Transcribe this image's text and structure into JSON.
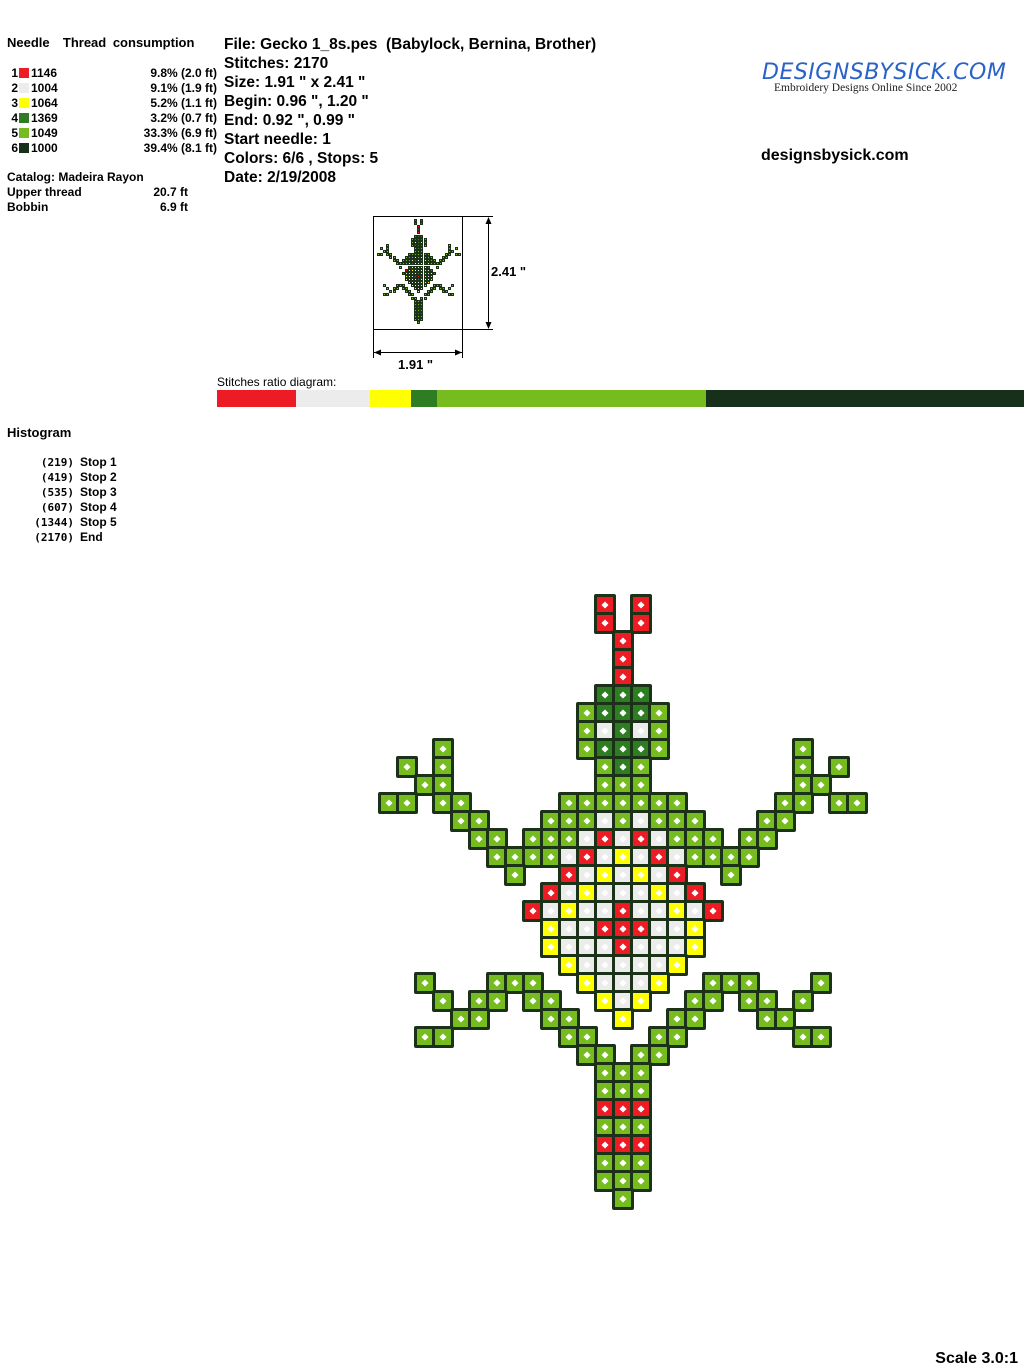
{
  "threads": {
    "header_needle": "Needle",
    "header_consumption": "Thread consumption",
    "items": [
      {
        "needle": "1",
        "code": "1146",
        "pct": "9.8% (2.0 ft)",
        "color": "#ed1c24",
        "ratio": 9.8
      },
      {
        "needle": "2",
        "code": "1004",
        "pct": "9.1% (1.9 ft)",
        "color": "#ececec",
        "ratio": 9.1
      },
      {
        "needle": "3",
        "code": "1064",
        "pct": "5.2% (1.1 ft)",
        "color": "#ffff00",
        "ratio": 5.2
      },
      {
        "needle": "4",
        "code": "1369",
        "pct": "3.2% (0.7 ft)",
        "color": "#2e7d22",
        "ratio": 3.2
      },
      {
        "needle": "5",
        "code": "1049",
        "pct": "33.3% (6.9 ft)",
        "color": "#76bc1e",
        "ratio": 33.3
      },
      {
        "needle": "6",
        "code": "1000",
        "pct": "39.4% (8.1 ft)",
        "color": "#17301a",
        "ratio": 39.4
      }
    ],
    "catalog": "Catalog: Madeira Rayon",
    "upper_label": "Upper thread",
    "upper_value": "20.7 ft",
    "bobbin_label": "Bobbin",
    "bobbin_value": "6.9 ft"
  },
  "file": {
    "file": "File: Gecko 1_8s.pes  (Babylock, Bernina, Brother)",
    "stitches": "Stitches: 2170",
    "size": "Size: 1.91 \" x 2.41 \"",
    "begin": "Begin: 0.96 \", 1.20 \"",
    "end": "End: 0.92 \", 0.99 \"",
    "start_needle": "Start needle: 1",
    "colors": "Colors: 6/6 , Stops: 5",
    "date": "Date: 2/19/2008"
  },
  "logo": {
    "main": "DESIGNSBYSICK.COM",
    "tagline": "Embroidery Designs Online Since 2002"
  },
  "site": "designsbysick.com",
  "preview": {
    "width": "1.91 \"",
    "height": "2.41 \""
  },
  "ratio_label": "Stitches ratio diagram:",
  "histogram": {
    "title": "Histogram",
    "items": [
      {
        "count": "(219)",
        "label": "Stop 1"
      },
      {
        "count": "(419)",
        "label": "Stop 2"
      },
      {
        "count": "(535)",
        "label": "Stop 3"
      },
      {
        "count": "(607)",
        "label": "Stop 4"
      },
      {
        "count": "(1344)",
        "label": "Stop 5"
      },
      {
        "count": "(2170)",
        "label": "End"
      }
    ]
  },
  "scale": "Scale 3.0:1"
}
